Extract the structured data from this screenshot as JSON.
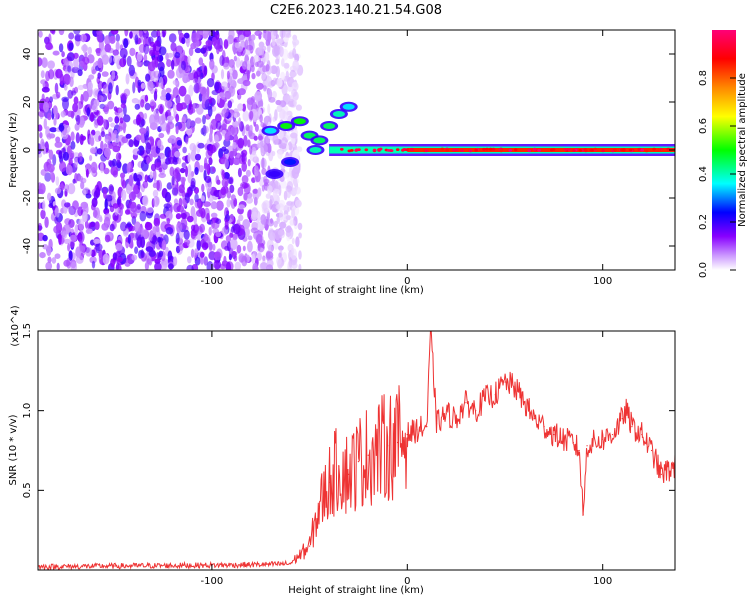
{
  "title": "C2E6.2023.140.21.54.G08",
  "colors": {
    "snr_line": "#ee3333",
    "spectrogram_noise": "#7733ee",
    "colormap": [
      "#ffffff",
      "#cc99ff",
      "#8800ff",
      "#0000ff",
      "#00ffff",
      "#00ff00",
      "#ffff00",
      "#ff8800",
      "#ff0000",
      "#ff0077"
    ]
  },
  "chart_data": [
    {
      "type": "heatmap",
      "title": "C2E6.2023.140.21.54.G08",
      "xlabel": "Height of straight line (km)",
      "ylabel": "Frequency (Hz)",
      "xlim": [
        -189,
        137
      ],
      "ylim": [
        -50,
        50
      ],
      "xticks": [
        -100,
        0,
        100
      ],
      "xtick_labels": [
        "-100",
        "0",
        "100"
      ],
      "yticks": [
        -40,
        -20,
        0,
        20,
        40
      ],
      "ytick_labels": [
        "-40",
        "-20",
        "0",
        "20",
        "40"
      ],
      "colorbar": {
        "label": "Normalized spectral amplitude",
        "range": [
          0,
          1
        ],
        "ticks": [
          0.0,
          0.2,
          0.4,
          0.6,
          0.8
        ],
        "tick_labels": [
          "0.0",
          "0.2",
          "0.4",
          "0.6",
          "0.8"
        ]
      },
      "features": {
        "noise_region_x": [
          -189,
          -62
        ],
        "main_band_frequency_hz": 0,
        "main_band_x": [
          -40,
          137
        ],
        "main_band_amplitude": 0.85,
        "branch_points": [
          {
            "x": -70,
            "y": 8,
            "amp": 0.35
          },
          {
            "x": -62,
            "y": 10,
            "amp": 0.5
          },
          {
            "x": -55,
            "y": 12,
            "amp": 0.5
          },
          {
            "x": -50,
            "y": 6,
            "amp": 0.45
          },
          {
            "x": -47,
            "y": 0,
            "amp": 0.4
          },
          {
            "x": -45,
            "y": 4,
            "amp": 0.45
          },
          {
            "x": -40,
            "y": 10,
            "amp": 0.45
          },
          {
            "x": -35,
            "y": 15,
            "amp": 0.4
          },
          {
            "x": -30,
            "y": 18,
            "amp": 0.35
          },
          {
            "x": -60,
            "y": -5,
            "amp": 0.25
          },
          {
            "x": -68,
            "y": -10,
            "amp": 0.2
          }
        ]
      }
    },
    {
      "type": "line",
      "xlabel": "Height of straight line (km)",
      "ylabel": "SNR (10 * v/v)",
      "y_multiplier": "(x10^4)",
      "xlim": [
        -189,
        137
      ],
      "ylim": [
        0,
        15000
      ],
      "xticks": [
        -100,
        0,
        100
      ],
      "xtick_labels": [
        "-100",
        "0",
        "100"
      ],
      "yticks": [
        5000,
        10000,
        15000
      ],
      "ytick_labels": [
        "0.5",
        "1.0",
        "1.5"
      ],
      "series": [
        {
          "x": [
            -189,
            -150,
            -100,
            -70,
            -60,
            -50,
            -45,
            -40,
            -35,
            -30,
            -25,
            -20,
            -15,
            -10,
            -5,
            0,
            5,
            10,
            12,
            15,
            20,
            25,
            30,
            35,
            40,
            45,
            50,
            55,
            60,
            65,
            70,
            75,
            80,
            85,
            88,
            90,
            92,
            95,
            100,
            105,
            110,
            112,
            115,
            120,
            125,
            130,
            137
          ],
          "values": [
            200,
            250,
            300,
            350,
            400,
            1500,
            4000,
            5500,
            6500,
            6000,
            6800,
            7200,
            7500,
            7800,
            8000,
            8500,
            8800,
            9000,
            15000,
            9200,
            9800,
            9500,
            10500,
            10000,
            10800,
            11000,
            11800,
            11500,
            10500,
            9500,
            9000,
            8500,
            8200,
            8000,
            7500,
            3500,
            7800,
            8000,
            8200,
            8500,
            9500,
            10000,
            9000,
            8500,
            7500,
            6000,
            6500
          ]
        }
      ]
    }
  ]
}
